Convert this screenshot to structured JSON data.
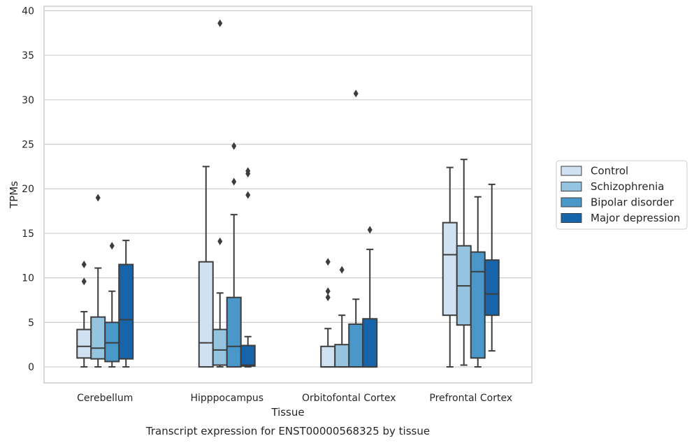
{
  "chart_data": {
    "type": "box",
    "title": "",
    "caption": "Transcript expression for ENST00000568325 by tissue",
    "xlabel": "Tissue",
    "ylabel": "TPMs",
    "ylim": [
      -1.8,
      40.5
    ],
    "yticks": [
      0,
      5,
      10,
      15,
      20,
      25,
      30,
      35,
      40
    ],
    "grid": "horizontal",
    "legend_position": "right",
    "categories": [
      "Cerebellum",
      "Hipppocampus",
      "Orbitofontal Cortex",
      "Prefrontal Cortex"
    ],
    "series": [
      {
        "name": "Control",
        "color": "#d0e1f2",
        "boxes": [
          {
            "whislo": 0,
            "q1": 1.0,
            "med": 2.3,
            "q3": 4.2,
            "whishi": 6.2,
            "fliers": [
              9.6,
              11.5
            ]
          },
          {
            "whislo": 0,
            "q1": 0,
            "med": 2.7,
            "q3": 11.8,
            "whishi": 22.5,
            "fliers": []
          },
          {
            "whislo": 0,
            "q1": 0,
            "med": 0,
            "q3": 2.3,
            "whishi": 4.3,
            "fliers": [
              7.8,
              8.5,
              11.8
            ]
          },
          {
            "whislo": 0,
            "q1": 5.8,
            "med": 12.6,
            "q3": 16.2,
            "whishi": 22.4,
            "fliers": []
          }
        ]
      },
      {
        "name": "Schizophrenia",
        "color": "#94c4df",
        "boxes": [
          {
            "whislo": 0,
            "q1": 0.9,
            "med": 2.1,
            "q3": 5.6,
            "whishi": 11.1,
            "fliers": [
              19.0
            ]
          },
          {
            "whislo": 0,
            "q1": 0.2,
            "med": 1.9,
            "q3": 4.2,
            "whishi": 8.3,
            "fliers": [
              14.1,
              38.6
            ]
          },
          {
            "whislo": 0,
            "q1": 0,
            "med": 0,
            "q3": 2.5,
            "whishi": 5.8,
            "fliers": [
              10.9
            ]
          },
          {
            "whislo": 0.2,
            "q1": 4.7,
            "med": 9.1,
            "q3": 13.6,
            "whishi": 23.3,
            "fliers": []
          }
        ]
      },
      {
        "name": "Bipolar disorder",
        "color": "#4a98c9",
        "boxes": [
          {
            "whislo": 0,
            "q1": 0.6,
            "med": 2.7,
            "q3": 5.0,
            "whishi": 8.5,
            "fliers": [
              13.6
            ]
          },
          {
            "whislo": 0,
            "q1": 0,
            "med": 2.3,
            "q3": 7.8,
            "whishi": 17.1,
            "fliers": [
              20.8,
              24.8
            ]
          },
          {
            "whislo": 0,
            "q1": 0,
            "med": 0,
            "q3": 4.8,
            "whishi": 7.6,
            "fliers": [
              30.7
            ]
          },
          {
            "whislo": 0,
            "q1": 1.0,
            "med": 10.7,
            "q3": 12.9,
            "whishi": 19.1,
            "fliers": []
          }
        ]
      },
      {
        "name": "Major depression",
        "color": "#1764ab",
        "boxes": [
          {
            "whislo": 0,
            "q1": 0.9,
            "med": 5.3,
            "q3": 11.5,
            "whishi": 14.2,
            "fliers": []
          },
          {
            "whislo": 0,
            "q1": 0.1,
            "med": 0.2,
            "q3": 2.4,
            "whishi": 3.4,
            "fliers": [
              19.3,
              21.7,
              22.0
            ]
          },
          {
            "whislo": 0,
            "q1": 0,
            "med": 0,
            "q3": 5.4,
            "whishi": 13.2,
            "fliers": [
              15.4
            ]
          },
          {
            "whislo": 1.8,
            "q1": 5.8,
            "med": 8.2,
            "q3": 12.0,
            "whishi": 20.5,
            "fliers": []
          }
        ]
      }
    ]
  }
}
